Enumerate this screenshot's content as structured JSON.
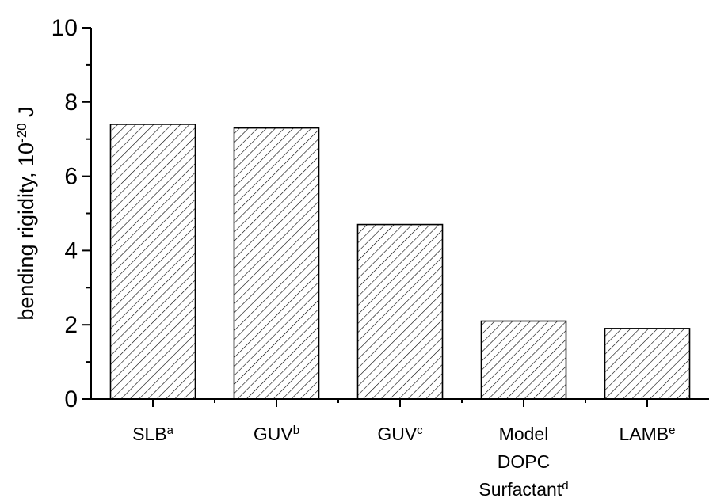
{
  "chart_data": {
    "type": "bar",
    "categories": [
      {
        "lines": [
          "SLB"
        ],
        "sup": "a"
      },
      {
        "lines": [
          "GUV"
        ],
        "sup": "b"
      },
      {
        "lines": [
          "GUV"
        ],
        "sup": "c"
      },
      {
        "lines": [
          "Model",
          "DOPC",
          "Surfactant"
        ],
        "sup": "d"
      },
      {
        "lines": [
          "LAMB"
        ],
        "sup": "e"
      }
    ],
    "values": [
      7.4,
      7.3,
      4.7,
      2.1,
      1.9
    ],
    "ylabel": {
      "text": "bending rigidity, 10",
      "exponent": "-20",
      "unit": " J"
    },
    "ylim": [
      0,
      10
    ],
    "yticks": [
      "0",
      "2",
      "4",
      "6",
      "8",
      "10"
    ],
    "bar_fill": "hatched",
    "colors": {
      "stroke": "#000000",
      "background": "#ffffff"
    }
  }
}
